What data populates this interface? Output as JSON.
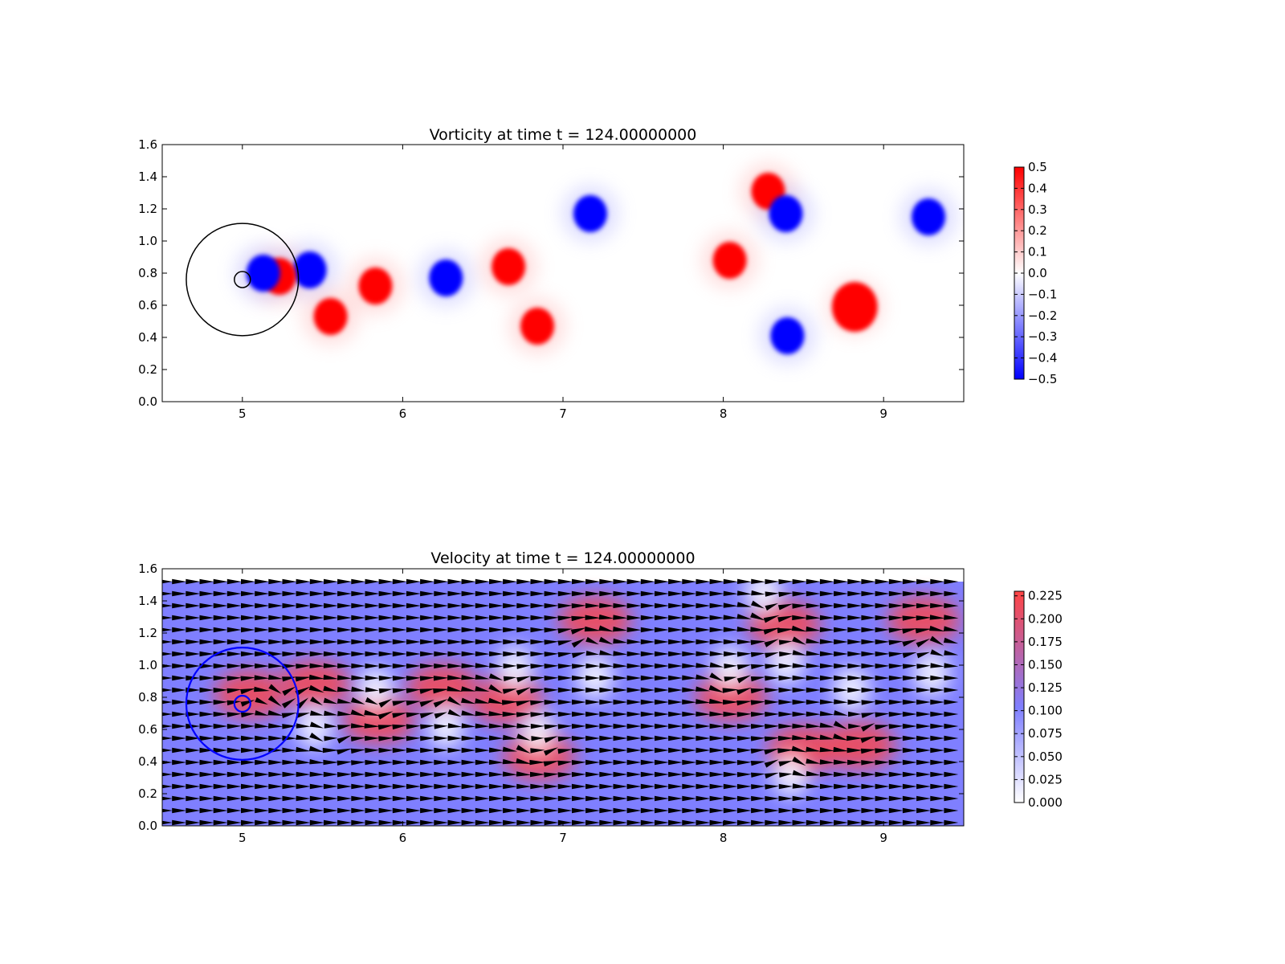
{
  "chart_data": [
    {
      "type": "heatmap",
      "title": "Vorticity at time t =   124.00000000",
      "xlabel": "",
      "ylabel": "",
      "xlim": [
        4.5,
        9.5
      ],
      "ylim": [
        0.0,
        1.6
      ],
      "xticks": [
        "5",
        "6",
        "7",
        "8",
        "9"
      ],
      "yticks": [
        "0.0",
        "0.2",
        "0.4",
        "0.6",
        "0.8",
        "1.0",
        "1.2",
        "1.4",
        "1.6"
      ],
      "colormap": "bwr",
      "clim": [
        -0.5,
        0.5
      ],
      "colorbar_ticks": [
        "0.5",
        "0.4",
        "0.3",
        "0.2",
        "0.1",
        "0.0",
        "−0.1",
        "−0.2",
        "−0.3",
        "−0.4",
        "−0.5"
      ],
      "colors": {
        "positive": "#ff0000",
        "negative": "#0000ff",
        "zero": "#ffffff"
      },
      "vortices": [
        {
          "x": 5.42,
          "y": 0.82,
          "value": -0.5
        },
        {
          "x": 5.23,
          "y": 0.78,
          "value": 0.5
        },
        {
          "x": 5.13,
          "y": 0.8,
          "value": -0.5
        },
        {
          "x": 5.55,
          "y": 0.53,
          "value": 0.5
        },
        {
          "x": 5.83,
          "y": 0.72,
          "value": 0.5
        },
        {
          "x": 6.27,
          "y": 0.77,
          "value": -0.5
        },
        {
          "x": 6.66,
          "y": 0.84,
          "value": 0.5
        },
        {
          "x": 6.84,
          "y": 0.47,
          "value": 0.5
        },
        {
          "x": 7.17,
          "y": 1.17,
          "value": -0.5
        },
        {
          "x": 8.04,
          "y": 0.88,
          "value": 0.5
        },
        {
          "x": 8.28,
          "y": 1.31,
          "value": 0.5
        },
        {
          "x": 8.39,
          "y": 1.17,
          "value": -0.5
        },
        {
          "x": 8.4,
          "y": 0.41,
          "value": -0.5
        },
        {
          "x": 8.82,
          "y": 0.59,
          "value": 0.5
        },
        {
          "x": 9.28,
          "y": 1.15,
          "value": -0.5
        }
      ],
      "cylinders": [
        {
          "x": 5.0,
          "y": 0.76,
          "r": 0.35,
          "color": "#000000"
        },
        {
          "x": 5.0,
          "y": 0.76,
          "r": 0.05,
          "color": "#000000"
        }
      ]
    },
    {
      "type": "heatmap",
      "title": "Velocity at time t =   124.00000000",
      "xlabel": "",
      "ylabel": "",
      "xlim": [
        4.5,
        9.5
      ],
      "ylim": [
        0.0,
        1.6
      ],
      "xticks": [
        "5",
        "6",
        "7",
        "8",
        "9"
      ],
      "yticks": [
        "0.0",
        "0.2",
        "0.4",
        "0.6",
        "0.8",
        "1.0",
        "1.2",
        "1.4",
        "1.6"
      ],
      "field_ylim": [
        0.0,
        1.52
      ],
      "colormap": "white-blue-red",
      "clim": [
        0.0,
        0.23
      ],
      "colorbar_ticks": [
        "0.225",
        "0.200",
        "0.175",
        "0.150",
        "0.125",
        "0.100",
        "0.075",
        "0.050",
        "0.025",
        "0.000"
      ],
      "colors": {
        "low": "#ffffff",
        "mid": "#7f7fff",
        "high": "#ff4444"
      },
      "background_speed": 0.1,
      "arrows": "quiver",
      "fast_regions": [
        {
          "x": 5.05,
          "y": 0.82,
          "speed": 0.23
        },
        {
          "x": 5.45,
          "y": 0.88,
          "speed": 0.22
        },
        {
          "x": 5.85,
          "y": 0.66,
          "speed": 0.22
        },
        {
          "x": 6.25,
          "y": 0.86,
          "speed": 0.23
        },
        {
          "x": 6.65,
          "y": 0.78,
          "speed": 0.21
        },
        {
          "x": 6.85,
          "y": 0.43,
          "speed": 0.2
        },
        {
          "x": 7.2,
          "y": 1.28,
          "speed": 0.23
        },
        {
          "x": 8.05,
          "y": 0.8,
          "speed": 0.18
        },
        {
          "x": 8.38,
          "y": 1.25,
          "speed": 0.22
        },
        {
          "x": 8.5,
          "y": 0.48,
          "speed": 0.23
        },
        {
          "x": 8.85,
          "y": 0.5,
          "speed": 0.23
        },
        {
          "x": 9.25,
          "y": 1.28,
          "speed": 0.21
        }
      ],
      "slow_regions": [
        {
          "x": 5.45,
          "y": 0.62,
          "speed": 0.01
        },
        {
          "x": 5.83,
          "y": 0.85,
          "speed": 0.01
        },
        {
          "x": 6.27,
          "y": 0.62,
          "speed": 0.01
        },
        {
          "x": 6.7,
          "y": 0.98,
          "speed": 0.01
        },
        {
          "x": 6.84,
          "y": 0.58,
          "speed": 0.02
        },
        {
          "x": 7.2,
          "y": 0.93,
          "speed": 0.01
        },
        {
          "x": 8.04,
          "y": 0.98,
          "speed": 0.01
        },
        {
          "x": 8.25,
          "y": 1.45,
          "speed": 0.01
        },
        {
          "x": 8.39,
          "y": 1.02,
          "speed": 0.01
        },
        {
          "x": 8.8,
          "y": 0.85,
          "speed": 0.01
        },
        {
          "x": 9.3,
          "y": 0.95,
          "speed": 0.01
        },
        {
          "x": 8.42,
          "y": 0.32,
          "speed": 0.02
        }
      ],
      "cylinders": [
        {
          "x": 5.0,
          "y": 0.76,
          "r": 0.35,
          "color": "#0000ff"
        },
        {
          "x": 5.0,
          "y": 0.76,
          "r": 0.05,
          "color": "#0000ff"
        }
      ]
    }
  ]
}
